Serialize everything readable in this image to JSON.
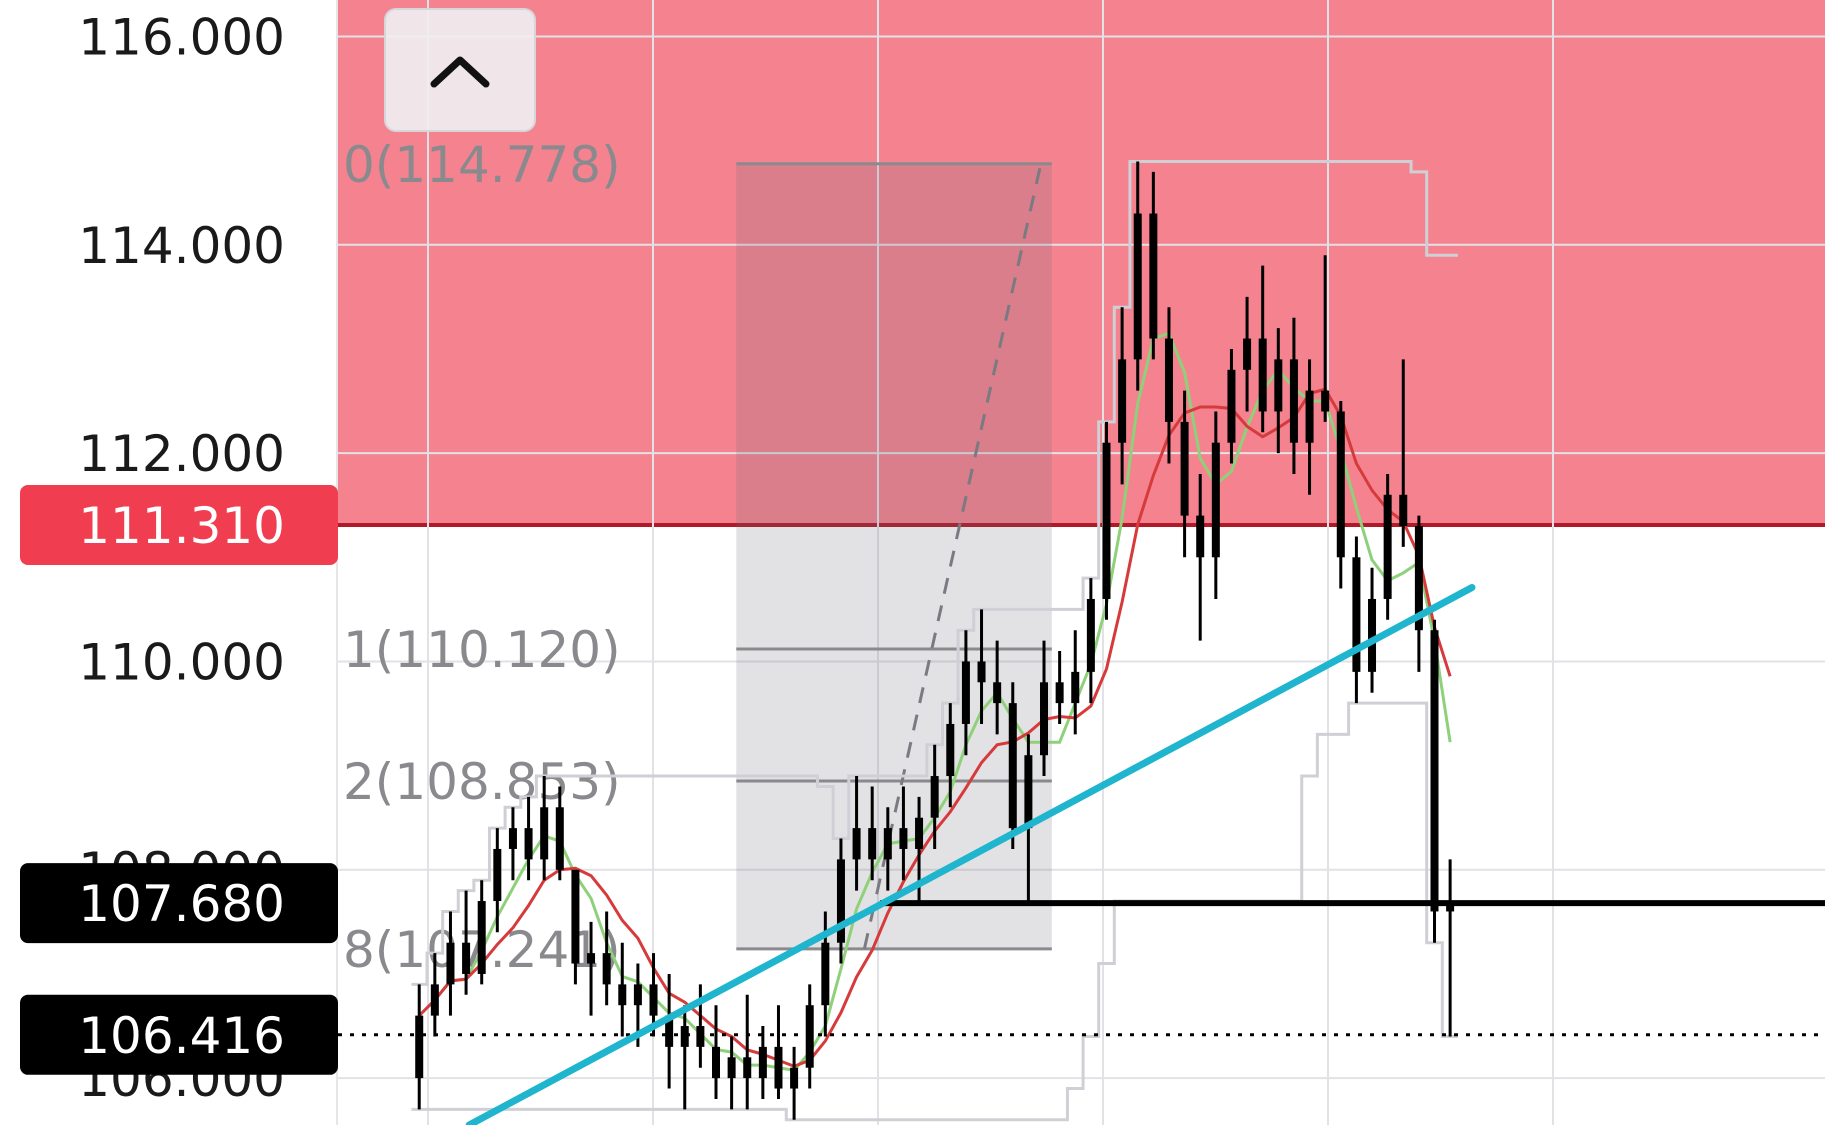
{
  "chart_data": {
    "type": "candlestick",
    "title": "",
    "xlabel": "",
    "ylabel": "",
    "ylim": [
      105.55,
      116.35
    ],
    "y_ticks": [
      "116.000",
      "114.000",
      "112.000",
      "110.000",
      "108.000",
      "106.000"
    ],
    "tags": [
      {
        "label": "111.310",
        "value": 111.31,
        "color": "#f03e50"
      },
      {
        "label": "107.680",
        "value": 107.68,
        "color": "#000000"
      },
      {
        "label": "106.416",
        "value": 106.416,
        "color": "#000000"
      }
    ],
    "fib_levels": [
      {
        "label": "0(114.778)",
        "value": 114.778
      },
      {
        "label": "1(110.120)",
        "value": 110.12
      },
      {
        "label": "2(108.853)",
        "value": 108.853
      },
      {
        "label": "8(107.241)",
        "value": 107.241
      }
    ],
    "resistance_zone": {
      "from": 111.31,
      "to": 116.35,
      "color": "#f4838f"
    },
    "candles": [
      [
        106.0,
        106.9,
        105.7,
        106.6
      ],
      [
        106.6,
        107.2,
        106.4,
        106.9
      ],
      [
        106.9,
        107.6,
        106.6,
        107.3
      ],
      [
        107.3,
        107.8,
        106.8,
        107.0
      ],
      [
        107.0,
        107.9,
        106.9,
        107.7
      ],
      [
        107.7,
        108.4,
        107.4,
        108.2
      ],
      [
        108.2,
        108.6,
        107.9,
        108.4
      ],
      [
        108.4,
        108.7,
        107.9,
        108.1
      ],
      [
        108.1,
        108.9,
        107.9,
        108.6
      ],
      [
        108.6,
        108.8,
        107.9,
        108.0
      ],
      [
        108.0,
        107.9,
        106.9,
        107.1
      ],
      [
        107.1,
        107.5,
        106.6,
        107.2
      ],
      [
        107.2,
        107.6,
        106.7,
        106.9
      ],
      [
        106.9,
        107.3,
        106.4,
        106.7
      ],
      [
        106.7,
        107.1,
        106.3,
        106.9
      ],
      [
        106.9,
        107.2,
        106.4,
        106.6
      ],
      [
        106.6,
        107.0,
        105.9,
        106.3
      ],
      [
        106.3,
        106.7,
        105.7,
        106.5
      ],
      [
        106.5,
        106.9,
        106.1,
        106.3
      ],
      [
        106.3,
        106.7,
        105.8,
        106.0
      ],
      [
        106.0,
        106.4,
        105.7,
        106.2
      ],
      [
        106.2,
        106.8,
        105.7,
        106.0
      ],
      [
        106.0,
        106.5,
        105.8,
        106.3
      ],
      [
        106.3,
        106.7,
        105.8,
        105.9
      ],
      [
        105.9,
        106.3,
        105.6,
        106.1
      ],
      [
        106.1,
        106.9,
        105.9,
        106.7
      ],
      [
        106.7,
        107.6,
        106.4,
        107.3
      ],
      [
        107.3,
        108.3,
        107.1,
        108.1
      ],
      [
        108.1,
        108.9,
        107.8,
        108.4
      ],
      [
        108.4,
        108.8,
        107.9,
        108.1
      ],
      [
        108.1,
        108.6,
        107.8,
        108.4
      ],
      [
        108.4,
        108.8,
        107.9,
        108.2
      ],
      [
        108.2,
        108.7,
        107.7,
        108.5
      ],
      [
        108.5,
        109.2,
        108.2,
        108.9
      ],
      [
        108.9,
        109.6,
        108.6,
        109.4
      ],
      [
        109.4,
        110.3,
        109.1,
        110.0
      ],
      [
        110.0,
        110.5,
        109.4,
        109.8
      ],
      [
        109.8,
        110.2,
        109.3,
        109.6
      ],
      [
        109.6,
        109.8,
        108.2,
        108.4
      ],
      [
        108.4,
        109.3,
        107.7,
        109.1
      ],
      [
        109.1,
        110.2,
        108.9,
        109.8
      ],
      [
        109.8,
        110.1,
        109.4,
        109.6
      ],
      [
        109.6,
        110.3,
        109.3,
        109.9
      ],
      [
        109.9,
        110.8,
        109.6,
        110.6
      ],
      [
        110.6,
        112.3,
        110.4,
        112.1
      ],
      [
        112.1,
        113.4,
        111.7,
        112.9
      ],
      [
        112.9,
        114.8,
        112.6,
        114.3
      ],
      [
        114.3,
        114.7,
        112.9,
        113.1
      ],
      [
        113.1,
        113.4,
        111.9,
        112.3
      ],
      [
        112.3,
        112.6,
        111.0,
        111.4
      ],
      [
        111.4,
        111.8,
        110.2,
        111.0
      ],
      [
        111.0,
        112.4,
        110.6,
        112.1
      ],
      [
        112.1,
        113.0,
        111.9,
        112.8
      ],
      [
        112.8,
        113.5,
        112.4,
        113.1
      ],
      [
        113.1,
        113.8,
        112.2,
        112.4
      ],
      [
        112.4,
        113.2,
        112.0,
        112.9
      ],
      [
        112.9,
        113.3,
        111.8,
        112.1
      ],
      [
        112.1,
        112.9,
        111.6,
        112.6
      ],
      [
        112.6,
        113.9,
        112.3,
        112.4
      ],
      [
        112.4,
        112.5,
        110.7,
        111.0
      ],
      [
        111.0,
        111.2,
        109.6,
        109.9
      ],
      [
        109.9,
        110.9,
        109.7,
        110.6
      ],
      [
        110.6,
        111.8,
        110.4,
        111.6
      ],
      [
        111.6,
        112.9,
        111.1,
        111.3
      ],
      [
        111.3,
        111.4,
        109.9,
        110.3
      ],
      [
        110.3,
        110.4,
        107.3,
        107.6
      ],
      [
        107.6,
        108.1,
        106.4,
        107.7
      ]
    ],
    "x_range": [
      -5.2,
      90.0
    ],
    "sma_fast": {
      "color": "#8fd07a"
    },
    "sma_slow": {
      "color": "#d63a3a"
    },
    "trendline": {
      "color": "#1fb5cf",
      "points": [
        [
          3.2,
          105.55
        ],
        [
          67.4,
          110.71
        ]
      ]
    },
    "support_line": {
      "value": 107.68,
      "from_index": 29.5,
      "color": "#000000"
    },
    "dotted_line": {
      "value": 106.416,
      "color": "#000000"
    }
  },
  "ui": {
    "collapse_icon": "chevron-up-icon"
  }
}
